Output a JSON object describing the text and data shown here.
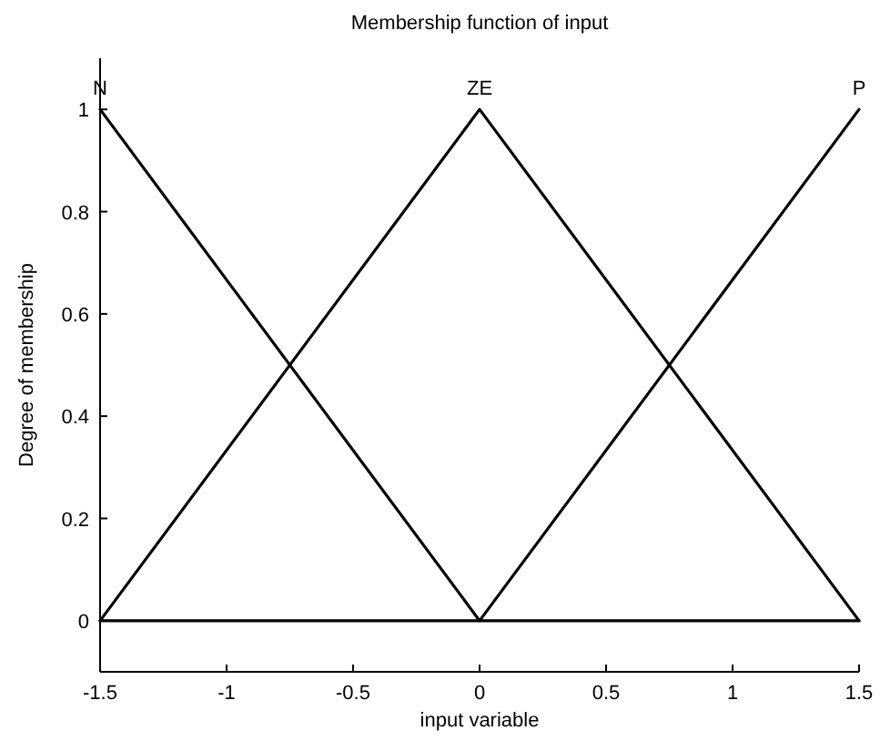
{
  "chart_data": {
    "type": "line",
    "title": "Membership function of input",
    "xlabel": "input variable",
    "ylabel": "Degree of membership",
    "x": [
      -1.5,
      0,
      1.5
    ],
    "series": [
      {
        "name": "N",
        "color": "#000000",
        "values": [
          1,
          0,
          0
        ]
      },
      {
        "name": "ZE",
        "color": "#000000",
        "values": [
          0,
          1,
          0
        ]
      },
      {
        "name": "P",
        "color": "#000000",
        "values": [
          0,
          0,
          1
        ]
      }
    ],
    "xlim": [
      -1.5,
      1.5
    ],
    "xticks": [
      -1.5,
      -1,
      -0.5,
      0,
      0.5,
      1,
      1.5
    ],
    "ylim": [
      -0.1,
      1.1
    ],
    "yticks": [
      0,
      0.2,
      0.4,
      0.6,
      0.8,
      1
    ],
    "grid": false,
    "marker": "none",
    "line_style": "solid"
  }
}
